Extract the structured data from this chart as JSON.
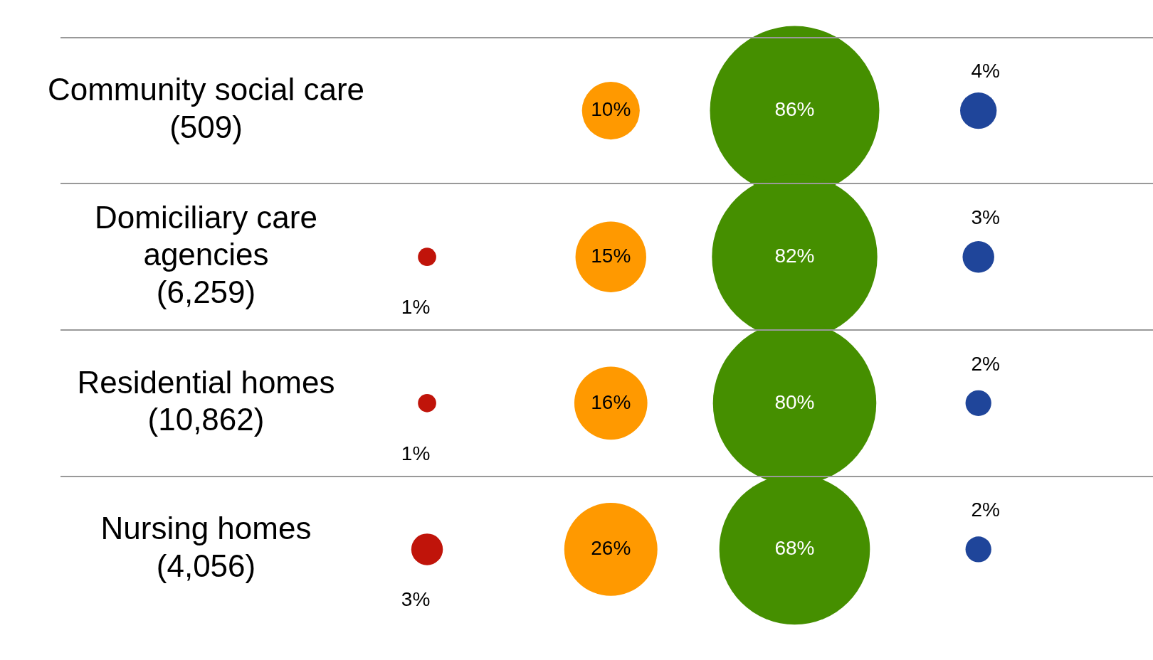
{
  "chart_data": {
    "type": "other",
    "legend": false,
    "categories": [
      "Community social care (509)",
      "Domiciliary care agencies (6,259)",
      "Residential homes (10,862)",
      "Nursing homes (4,056)"
    ],
    "series": [
      {
        "color": "#c0140a",
        "values": [
          null,
          1,
          1,
          3
        ],
        "value_labels": [
          null,
          "1%",
          "1%",
          "3%"
        ]
      },
      {
        "color": "#ff9900",
        "values": [
          10,
          15,
          16,
          26
        ],
        "value_labels": [
          "10%",
          "15%",
          "16%",
          "26%"
        ]
      },
      {
        "color": "#458f00",
        "values": [
          86,
          82,
          80,
          68
        ],
        "value_labels": [
          "86%",
          "82%",
          "80%",
          "68%"
        ]
      },
      {
        "color": "#1f459a",
        "values": [
          4,
          3,
          2,
          2
        ],
        "value_labels": [
          "4%",
          "3%",
          "2%",
          "2%"
        ]
      }
    ]
  }
}
